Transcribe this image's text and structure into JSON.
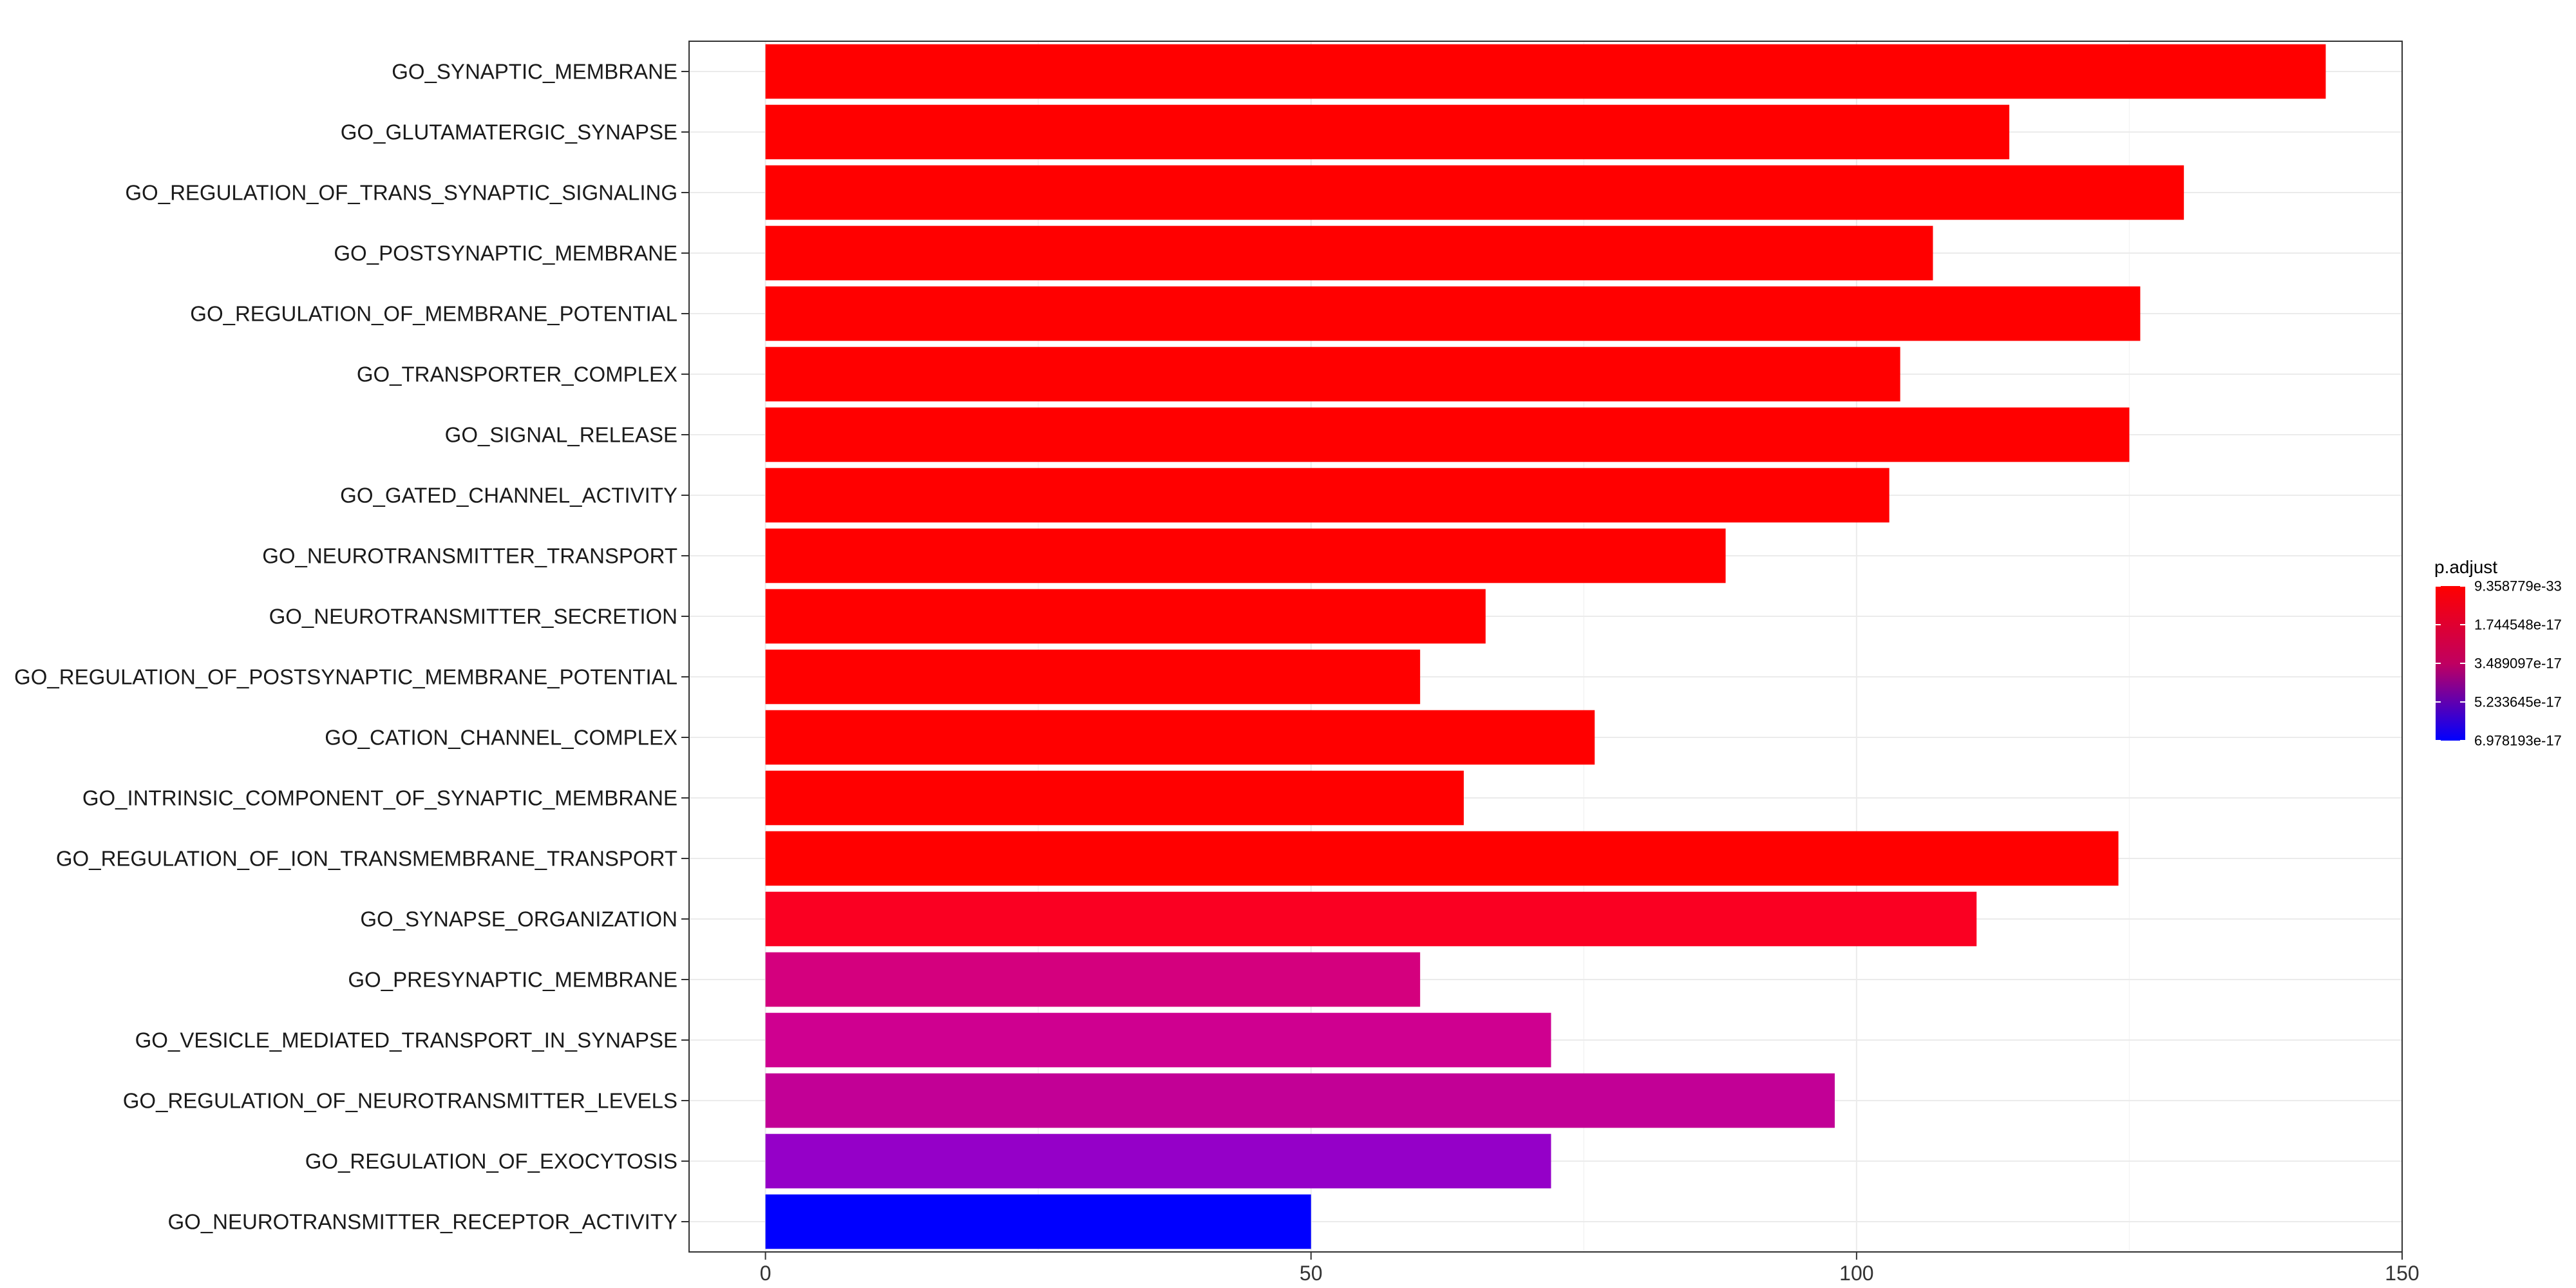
{
  "chart_data": {
    "type": "bar",
    "orientation": "horizontal",
    "categories": [
      "GO_SYNAPTIC_MEMBRANE",
      "GO_GLUTAMATERGIC_SYNAPSE",
      "GO_REGULATION_OF_TRANS_SYNAPTIC_SIGNALING",
      "GO_POSTSYNAPTIC_MEMBRANE",
      "GO_REGULATION_OF_MEMBRANE_POTENTIAL",
      "GO_TRANSPORTER_COMPLEX",
      "GO_SIGNAL_RELEASE",
      "GO_GATED_CHANNEL_ACTIVITY",
      "GO_NEUROTRANSMITTER_TRANSPORT",
      "GO_NEUROTRANSMITTER_SECRETION",
      "GO_REGULATION_OF_POSTSYNAPTIC_MEMBRANE_POTENTIAL",
      "GO_CATION_CHANNEL_COMPLEX",
      "GO_INTRINSIC_COMPONENT_OF_SYNAPTIC_MEMBRANE",
      "GO_REGULATION_OF_ION_TRANSMEMBRANE_TRANSPORT",
      "GO_SYNAPSE_ORGANIZATION",
      "GO_PRESYNAPTIC_MEMBRANE",
      "GO_VESICLE_MEDIATED_TRANSPORT_IN_SYNAPSE",
      "GO_REGULATION_OF_NEUROTRANSMITTER_LEVELS",
      "GO_REGULATION_OF_EXOCYTOSIS",
      "GO_NEUROTRANSMITTER_RECEPTOR_ACTIVITY"
    ],
    "values": [
      143,
      114,
      130,
      107,
      126,
      104,
      125,
      103,
      88,
      66,
      60,
      76,
      64,
      124,
      111,
      60,
      72,
      98,
      72,
      50
    ],
    "bar_colors": [
      "#FF0000",
      "#FF0000",
      "#FF0000",
      "#FF0000",
      "#FF0000",
      "#FF0000",
      "#FF0000",
      "#FF0000",
      "#FF0000",
      "#FF0000",
      "#FF0000",
      "#FF0000",
      "#FF0000",
      "#FF0000",
      "#FA0022",
      "#D4007E",
      "#CF0090",
      "#C20096",
      "#9500C8",
      "#0000FF"
    ],
    "xlim": [
      -7,
      150
    ],
    "xticks": [
      0,
      50,
      100,
      150
    ],
    "xtick_labels": [
      "0",
      "50",
      "100",
      "150"
    ],
    "grid": true,
    "legend": {
      "title": "p.adjust",
      "position": "right",
      "labels": [
        "9.358779e-33",
        "1.744548e-17",
        "3.489097e-17",
        "5.233645e-17",
        "6.978193e-17"
      ],
      "color_high": "#FF0000",
      "color_low": "#0000FF"
    },
    "title": "",
    "xlabel": "",
    "ylabel": ""
  }
}
